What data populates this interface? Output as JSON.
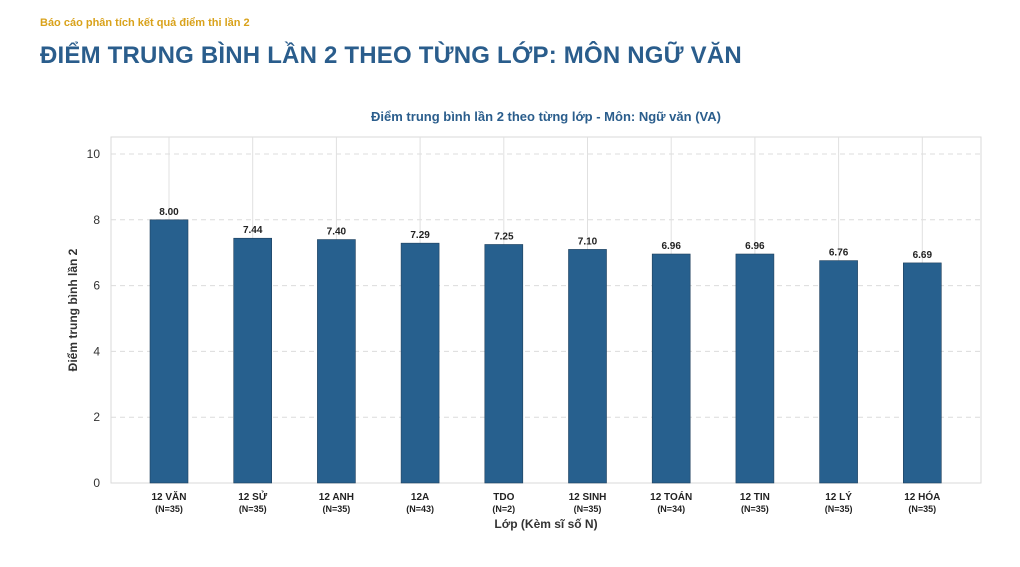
{
  "header": {
    "caption": "Báo cáo phân tích kết quả điểm thi lần 2",
    "title": "ĐIỂM TRUNG BÌNH LẦN 2 THEO TỪNG LỚP: MÔN NGỮ VĂN"
  },
  "chart_data": {
    "type": "bar",
    "title": "Điểm trung bình lần 2 theo từng lớp - Môn: Ngữ văn (VA)",
    "xlabel": "Lớp (Kèm sĩ số N)",
    "ylabel": "Điểm trung bình lần 2",
    "categories": [
      "12 VĂN",
      "12 SỬ",
      "12 ANH",
      "12A",
      "TDO",
      "12 SINH",
      "12 TOÁN",
      "12 TIN",
      "12 LÝ",
      "12 HÓA"
    ],
    "category_counts": [
      "(N=35)",
      "(N=35)",
      "(N=35)",
      "(N=43)",
      "(N=2)",
      "(N=35)",
      "(N=34)",
      "(N=35)",
      "(N=35)",
      "(N=35)"
    ],
    "values": [
      8.0,
      7.44,
      7.4,
      7.29,
      7.25,
      7.1,
      6.96,
      6.96,
      6.76,
      6.69
    ],
    "value_labels": [
      "8.00",
      "7.44",
      "7.40",
      "7.29",
      "7.25",
      "7.10",
      "6.96",
      "6.96",
      "6.76",
      "6.69"
    ],
    "ylim": [
      0,
      10
    ],
    "yticks": [
      0,
      2,
      4,
      6,
      8,
      10
    ],
    "grid": true,
    "bar_color": "#27608e",
    "title_color": "#2a5d8c",
    "caption_color": "#d9a21b"
  }
}
